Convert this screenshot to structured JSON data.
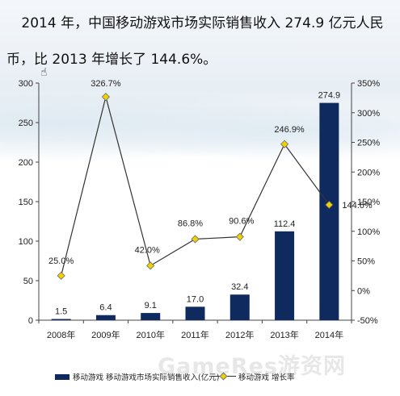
{
  "headline": {
    "line1": "2014 年，中国移动游戏市场实际销售收入  274.9  亿元人民",
    "line2": "币，比 2013 年增长了 144.6%。"
  },
  "watermark": "GameRes游资网",
  "colors": {
    "bar": "#0e2a5e",
    "line": "#333333",
    "marker": "#f0d000"
  },
  "chart_data": {
    "type": "bar",
    "categories": [
      "2008年",
      "2009年",
      "2010年",
      "2011年",
      "2012年",
      "2013年",
      "2014年"
    ],
    "series": [
      {
        "name": "移动游戏 移动游戏市场实际销售收入(亿元)",
        "type": "bar",
        "axis": "left",
        "values": [
          1.5,
          6.4,
          9.1,
          17.0,
          32.4,
          112.4,
          274.9
        ],
        "labels": [
          "1.5",
          "6.4",
          "9.1",
          "17.0",
          "32.4",
          "112.4",
          "274.9"
        ]
      },
      {
        "name": "移动游戏 增长率",
        "type": "line",
        "axis": "right",
        "values": [
          25.0,
          326.7,
          42.0,
          86.8,
          90.6,
          246.9,
          144.6
        ],
        "labels": [
          "25.0%",
          "326.7%",
          "42.0%",
          "86.8%",
          "90.6%",
          "246.9%",
          "144.6%"
        ]
      }
    ],
    "y_left": {
      "range": [
        0,
        300
      ],
      "ticks": [
        "0",
        "50",
        "100",
        "150",
        "200",
        "250",
        "300"
      ]
    },
    "y_right": {
      "range": [
        -50,
        350
      ],
      "ticks": [
        "-50%",
        "0%",
        "50%",
        "100%",
        "150%",
        "200%",
        "250%",
        "300%",
        "350%"
      ]
    },
    "grid": false,
    "legend_position": "bottom"
  }
}
